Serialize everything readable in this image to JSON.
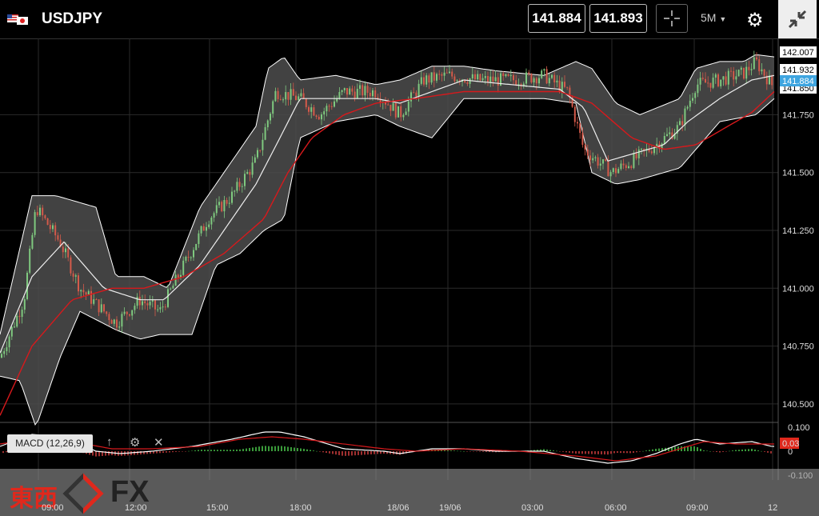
{
  "header": {
    "symbol": "USDJPY",
    "bid": "141.884",
    "ask": "141.893",
    "timeframe": "5M",
    "icons": [
      "flag-us-jp-icon",
      "crosshair-icon",
      "gear-icon",
      "collapse-icon"
    ]
  },
  "indicator": {
    "label": "MACD (12,26,9)",
    "icons": [
      "arrow-up-icon",
      "gear-icon",
      "close-icon"
    ]
  },
  "chart_data": {
    "type": "candlestick",
    "price_axis": {
      "ticks": [
        "142.007",
        "141.932",
        "141.884",
        "141.850",
        "141.750",
        "141.500",
        "141.250",
        "141.000",
        "140.750",
        "140.500"
      ],
      "tick_values": [
        141.75,
        141.5,
        141.25,
        141.0,
        140.75,
        140.5
      ],
      "range": [
        140.42,
        142.08
      ],
      "labels": {
        "high": "142.007",
        "mid": "141.932",
        "current": "141.884",
        "low": "141.850"
      }
    },
    "macd_axis": {
      "ticks": [
        "0.100",
        "0",
        "-0.100"
      ],
      "tick_values": [
        0.1,
        0,
        -0.1
      ],
      "range": [
        -0.12,
        0.12
      ],
      "current_label": "0.03"
    },
    "time_axis": {
      "labels": [
        "09:00",
        "12:00",
        "15:00",
        "18:00",
        "18/06",
        "19/06",
        "03:00",
        "06:00",
        "09:00",
        "12"
      ]
    },
    "series": {
      "close_anchors": [
        [
          0,
          140.7
        ],
        [
          30,
          140.95
        ],
        [
          45,
          141.35
        ],
        [
          75,
          141.2
        ],
        [
          100,
          141.0
        ],
        [
          145,
          140.85
        ],
        [
          175,
          140.95
        ],
        [
          200,
          140.9
        ],
        [
          230,
          141.1
        ],
        [
          260,
          141.3
        ],
        [
          290,
          141.4
        ],
        [
          320,
          141.55
        ],
        [
          345,
          141.85
        ],
        [
          375,
          141.82
        ],
        [
          400,
          141.75
        ],
        [
          430,
          141.85
        ],
        [
          470,
          141.85
        ],
        [
          500,
          141.75
        ],
        [
          530,
          141.9
        ],
        [
          560,
          141.92
        ],
        [
          600,
          141.9
        ],
        [
          640,
          141.9
        ],
        [
          680,
          141.92
        ],
        [
          710,
          141.85
        ],
        [
          730,
          141.6
        ],
        [
          765,
          141.5
        ],
        [
          790,
          141.55
        ],
        [
          820,
          141.62
        ],
        [
          850,
          141.7
        ],
        [
          870,
          141.88
        ],
        [
          900,
          141.9
        ],
        [
          930,
          141.93
        ],
        [
          945,
          141.98
        ],
        [
          965,
          141.88
        ]
      ],
      "upper_band_anchors": [
        [
          0,
          140.8
        ],
        [
          40,
          141.4
        ],
        [
          70,
          141.4
        ],
        [
          120,
          141.35
        ],
        [
          145,
          141.05
        ],
        [
          180,
          141.05
        ],
        [
          210,
          141.0
        ],
        [
          250,
          141.35
        ],
        [
          290,
          141.55
        ],
        [
          320,
          141.7
        ],
        [
          335,
          141.95
        ],
        [
          355,
          142.0
        ],
        [
          375,
          141.9
        ],
        [
          420,
          141.92
        ],
        [
          470,
          141.88
        ],
        [
          500,
          141.9
        ],
        [
          540,
          141.96
        ],
        [
          580,
          141.96
        ],
        [
          620,
          141.94
        ],
        [
          680,
          141.92
        ],
        [
          720,
          141.98
        ],
        [
          740,
          141.95
        ],
        [
          770,
          141.8
        ],
        [
          800,
          141.75
        ],
        [
          850,
          141.82
        ],
        [
          870,
          141.95
        ],
        [
          900,
          141.98
        ],
        [
          930,
          141.98
        ],
        [
          945,
          142.01
        ],
        [
          968,
          142.0
        ]
      ],
      "lower_band_anchors": [
        [
          0,
          140.62
        ],
        [
          25,
          140.6
        ],
        [
          45,
          140.4
        ],
        [
          75,
          140.7
        ],
        [
          100,
          140.9
        ],
        [
          145,
          140.82
        ],
        [
          175,
          140.78
        ],
        [
          200,
          140.8
        ],
        [
          240,
          140.8
        ],
        [
          270,
          141.1
        ],
        [
          300,
          141.15
        ],
        [
          330,
          141.25
        ],
        [
          355,
          141.3
        ],
        [
          375,
          141.65
        ],
        [
          420,
          141.72
        ],
        [
          470,
          141.75
        ],
        [
          500,
          141.7
        ],
        [
          540,
          141.65
        ],
        [
          580,
          141.82
        ],
        [
          620,
          141.82
        ],
        [
          680,
          141.82
        ],
        [
          720,
          141.8
        ],
        [
          740,
          141.5
        ],
        [
          770,
          141.45
        ],
        [
          800,
          141.47
        ],
        [
          850,
          141.52
        ],
        [
          870,
          141.6
        ],
        [
          900,
          141.72
        ],
        [
          945,
          141.75
        ],
        [
          968,
          141.82
        ]
      ],
      "middle_band_anchors": [
        [
          0,
          140.72
        ],
        [
          40,
          141.05
        ],
        [
          80,
          141.2
        ],
        [
          130,
          141.0
        ],
        [
          175,
          140.95
        ],
        [
          205,
          140.95
        ],
        [
          250,
          141.1
        ],
        [
          290,
          141.3
        ],
        [
          320,
          141.45
        ],
        [
          350,
          141.65
        ],
        [
          375,
          141.82
        ],
        [
          430,
          141.82
        ],
        [
          470,
          141.82
        ],
        [
          500,
          141.8
        ],
        [
          540,
          141.85
        ],
        [
          580,
          141.9
        ],
        [
          640,
          141.88
        ],
        [
          700,
          141.86
        ],
        [
          730,
          141.78
        ],
        [
          760,
          141.55
        ],
        [
          790,
          141.58
        ],
        [
          830,
          141.62
        ],
        [
          860,
          141.72
        ],
        [
          900,
          141.82
        ],
        [
          940,
          141.9
        ],
        [
          968,
          141.92
        ]
      ],
      "ma_red_anchors": [
        [
          0,
          140.45
        ],
        [
          40,
          140.75
        ],
        [
          90,
          140.95
        ],
        [
          140,
          141.0
        ],
        [
          180,
          141.0
        ],
        [
          230,
          141.05
        ],
        [
          280,
          141.15
        ],
        [
          330,
          141.3
        ],
        [
          360,
          141.5
        ],
        [
          390,
          141.65
        ],
        [
          430,
          141.75
        ],
        [
          470,
          141.8
        ],
        [
          520,
          141.82
        ],
        [
          580,
          141.85
        ],
        [
          640,
          141.85
        ],
        [
          700,
          141.85
        ],
        [
          740,
          141.8
        ],
        [
          790,
          141.65
        ],
        [
          830,
          141.6
        ],
        [
          870,
          141.62
        ],
        [
          910,
          141.7
        ],
        [
          940,
          141.76
        ],
        [
          968,
          141.85
        ]
      ],
      "macd_line_anchors": [
        [
          0,
          0.02
        ],
        [
          40,
          0.07
        ],
        [
          80,
          0.06
        ],
        [
          120,
          0.0
        ],
        [
          150,
          -0.01
        ],
        [
          190,
          0.0
        ],
        [
          240,
          0.02
        ],
        [
          290,
          0.05
        ],
        [
          330,
          0.08
        ],
        [
          350,
          0.08
        ],
        [
          380,
          0.06
        ],
        [
          430,
          0.01
        ],
        [
          480,
          0.0
        ],
        [
          500,
          -0.01
        ],
        [
          540,
          0.01
        ],
        [
          580,
          0.01
        ],
        [
          620,
          0.0
        ],
        [
          680,
          0.0
        ],
        [
          720,
          -0.03
        ],
        [
          760,
          -0.05
        ],
        [
          790,
          -0.04
        ],
        [
          820,
          -0.01
        ],
        [
          850,
          0.03
        ],
        [
          870,
          0.05
        ],
        [
          900,
          0.03
        ],
        [
          940,
          0.04
        ],
        [
          965,
          0.02
        ]
      ],
      "signal_line_anchors": [
        [
          0,
          0.03
        ],
        [
          40,
          0.05
        ],
        [
          90,
          0.04
        ],
        [
          140,
          0.01
        ],
        [
          190,
          0.01
        ],
        [
          250,
          0.02
        ],
        [
          300,
          0.05
        ],
        [
          340,
          0.06
        ],
        [
          380,
          0.05
        ],
        [
          430,
          0.03
        ],
        [
          480,
          0.01
        ],
        [
          520,
          0.0
        ],
        [
          580,
          0.01
        ],
        [
          650,
          0.0
        ],
        [
          720,
          -0.02
        ],
        [
          770,
          -0.04
        ],
        [
          820,
          -0.02
        ],
        [
          860,
          0.02
        ],
        [
          880,
          0.04
        ],
        [
          920,
          0.03
        ],
        [
          965,
          0.03
        ]
      ]
    },
    "colors": {
      "up_candle": "#7fc97f",
      "down_candle": "#d45a4a",
      "band_fill": "#4d4d4d",
      "band_line": "#ffffff",
      "ma_line": "#d7191c",
      "current_price_bg": "#3ea5e0",
      "macd_current_bg": "#e0281c"
    }
  },
  "brand": {
    "name_jp": "東西",
    "name_fx": "FX"
  }
}
